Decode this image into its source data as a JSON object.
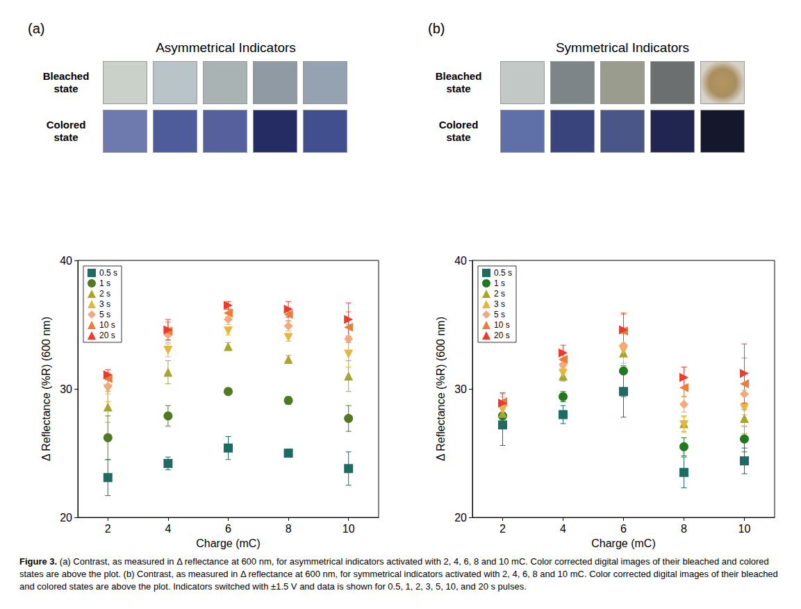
{
  "chart_data": [
    {
      "type": "scatter",
      "panel_label": "(a)",
      "title": "Asymmetrical Indicators",
      "image_rows": [
        "Bleached state",
        "Colored state"
      ],
      "x_label": "Charge (mC)",
      "y_label": "Δ Reflectance (%R) (600 nm)",
      "x": [
        2,
        4,
        6,
        8,
        10
      ],
      "xlim": [
        1,
        11
      ],
      "xticks": [
        2,
        4,
        6,
        8,
        10
      ],
      "ylim": [
        20,
        40
      ],
      "yticks": [
        20,
        30,
        40
      ],
      "grid": false,
      "legend": "upper left",
      "series": [
        {
          "name": "0.5 s",
          "color": "#1d6b63",
          "marker": "square",
          "values": [
            23.1,
            24.2,
            25.4,
            25.0,
            23.8
          ],
          "errors": [
            1.4,
            0.5,
            0.9,
            0.3,
            1.3
          ]
        },
        {
          "name": "1 s",
          "color": "#4d7a22",
          "marker": "circle",
          "values": [
            26.2,
            27.9,
            29.8,
            29.1,
            27.7
          ],
          "errors": [
            1.7,
            0.8,
            0.2,
            0.3,
            1.0
          ]
        },
        {
          "name": "2 s",
          "color": "#a9a42c",
          "marker": "triangle",
          "values": [
            28.6,
            31.3,
            33.3,
            32.3,
            31.0
          ],
          "errors": [
            1.2,
            0.9,
            0.3,
            0.3,
            1.2
          ]
        },
        {
          "name": "3 s",
          "color": "#e4b73c",
          "marker": "triangle-down",
          "values": [
            30.0,
            33.0,
            34.5,
            34.0,
            32.7
          ],
          "errors": [
            1.0,
            0.5,
            0.3,
            0.3,
            1.0
          ]
        },
        {
          "name": "5 s",
          "color": "#f2a97d",
          "marker": "diamond",
          "values": [
            30.2,
            34.2,
            35.4,
            34.9,
            33.9
          ],
          "errors": [
            0.6,
            0.6,
            0.4,
            0.4,
            1.1
          ]
        },
        {
          "name": "10 s",
          "color": "#ef7b39",
          "marker": "triangle-left",
          "values": [
            30.8,
            34.5,
            35.9,
            35.8,
            34.8
          ],
          "errors": [
            0.5,
            0.7,
            0.3,
            0.5,
            1.2
          ]
        },
        {
          "name": "20 s",
          "color": "#ee3a2b",
          "marker": "triangle-right",
          "values": [
            31.1,
            34.6,
            36.5,
            36.2,
            35.4
          ],
          "errors": [
            0.4,
            0.8,
            0.3,
            0.6,
            1.3
          ]
        }
      ]
    },
    {
      "type": "scatter",
      "panel_label": "(b)",
      "title": "Symmetrical Indicators",
      "image_rows": [
        "Bleached state",
        "Colored state"
      ],
      "x_label": "Charge (mC)",
      "y_label": "Δ Reflectance (%R) (600 nm)",
      "x": [
        2,
        4,
        6,
        8,
        10
      ],
      "xlim": [
        1,
        11
      ],
      "xticks": [
        2,
        4,
        6,
        8,
        10
      ],
      "ylim": [
        20,
        40
      ],
      "yticks": [
        20,
        30,
        40
      ],
      "grid": false,
      "legend": "upper left",
      "series": [
        {
          "name": "0.5 s",
          "color": "#1d6b63",
          "marker": "square",
          "values": [
            27.2,
            28.0,
            29.8,
            23.5,
            24.4
          ],
          "errors": [
            1.6,
            0.7,
            2.0,
            1.2,
            1.0
          ]
        },
        {
          "name": "1 s",
          "color": "#1f7a1f",
          "marker": "circle",
          "values": [
            27.9,
            29.4,
            31.4,
            25.5,
            26.1
          ],
          "errors": [
            0.8,
            0.4,
            2.0,
            0.7,
            1.0
          ]
        },
        {
          "name": "2 s",
          "color": "#a9a42c",
          "marker": "triangle",
          "values": [
            28.1,
            31.0,
            32.8,
            27.3,
            27.7
          ],
          "errors": [
            0.7,
            0.4,
            1.5,
            0.6,
            1.2
          ]
        },
        {
          "name": "3 s",
          "color": "#e4b73c",
          "marker": "triangle-down",
          "values": [
            28.4,
            31.2,
            33.0,
            27.2,
            28.5
          ],
          "errors": [
            0.7,
            0.4,
            1.4,
            0.6,
            1.4
          ]
        },
        {
          "name": "5 s",
          "color": "#f2a97d",
          "marker": "diamond",
          "values": [
            28.8,
            31.9,
            33.4,
            28.8,
            29.6
          ],
          "errors": [
            0.6,
            0.5,
            1.4,
            0.6,
            1.6
          ]
        },
        {
          "name": "10 s",
          "color": "#ef7b39",
          "marker": "triangle-left",
          "values": [
            29.0,
            32.3,
            34.5,
            30.1,
            30.4
          ],
          "errors": [
            0.6,
            0.6,
            1.3,
            0.7,
            2.0
          ]
        },
        {
          "name": "20 s",
          "color": "#ee3a2b",
          "marker": "triangle-right",
          "values": [
            28.9,
            32.8,
            34.6,
            30.9,
            31.2
          ],
          "errors": [
            0.8,
            0.6,
            1.3,
            0.8,
            2.3
          ]
        }
      ]
    }
  ],
  "caption": {
    "label": "Figure 3.",
    "text": "(a) Contrast, as measured in Δ reflectance at 600 nm, for asymmetrical indicators activated with 2, 4, 6, 8 and 10 mC. Color corrected digital images of their bleached and colored states are above the plot. (b) Contrast, as measured in Δ reflectance at 600 nm, for symmetrical indicators activated with 2, 4, 6, 8 and 10 mC. Color corrected digital images of their bleached and colored states are above the plot. Indicators switched with ±1.5 V and data is shown for 0.5, 1, 2, 3, 5, 10, and 20 s pulses."
  }
}
